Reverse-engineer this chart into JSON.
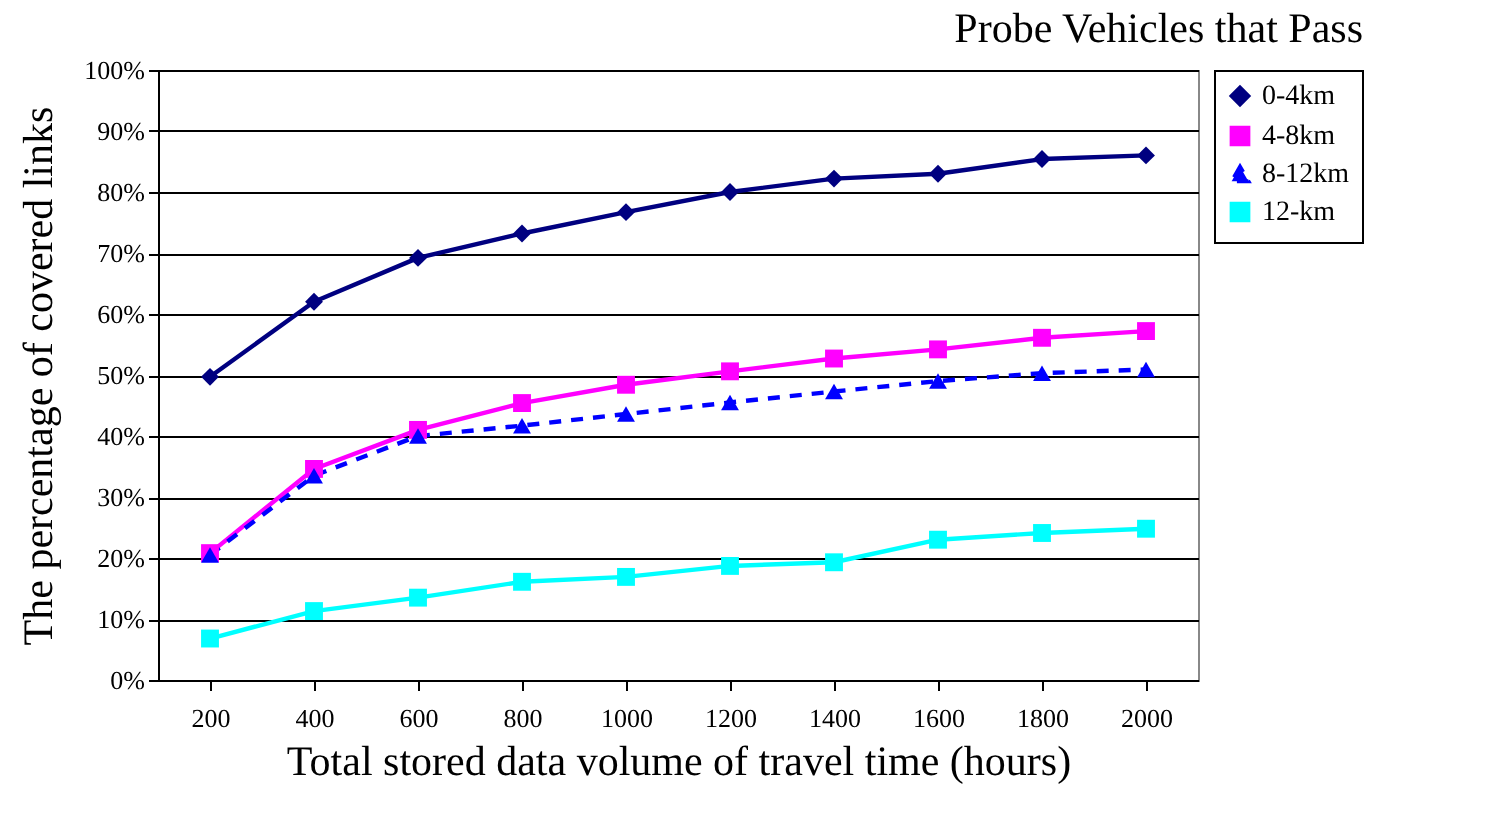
{
  "chart_data": {
    "type": "line",
    "title": "Probe Vehicles that Pass",
    "xlabel": "Total stored data volume of travel time (hours)",
    "ylabel": "The percentage of covered links",
    "categories": [
      "200",
      "400",
      "600",
      "800",
      "1000",
      "1200",
      "1400",
      "1600",
      "1800",
      "2000"
    ],
    "series": [
      {
        "name": "0-4km",
        "color": "#000080",
        "marker": "diamond",
        "line_style": "solid",
        "values": [
          49.7,
          62,
          69.2,
          73.2,
          76.7,
          80,
          82.2,
          83,
          85.4,
          86
        ]
      },
      {
        "name": "4-8km",
        "color": "#ff00ff",
        "marker": "square",
        "line_style": "solid",
        "values": [
          20.8,
          34.6,
          41,
          45.4,
          48.4,
          50.6,
          52.7,
          54.2,
          56.1,
          57.2
        ]
      },
      {
        "name": "8-12km",
        "color": "#0000ff",
        "marker": "triangle",
        "line_style": "dashed",
        "values": [
          20.5,
          33.5,
          40,
          41.7,
          43.6,
          45.5,
          47.3,
          49,
          50.3,
          50.9
        ]
      },
      {
        "name": "12-km",
        "color": "#00ffff",
        "marker": "square",
        "line_style": "solid",
        "values": [
          6.8,
          11.3,
          13.5,
          16.1,
          16.9,
          18.7,
          19.3,
          23,
          24.1,
          24.8
        ]
      }
    ],
    "ylim": [
      0,
      100
    ],
    "yticks": [
      {
        "value": 0,
        "label": "0%"
      },
      {
        "value": 10,
        "label": "10%"
      },
      {
        "value": 20,
        "label": "20%"
      },
      {
        "value": 30,
        "label": "30%"
      },
      {
        "value": 40,
        "label": "40%"
      },
      {
        "value": 50,
        "label": "50%"
      },
      {
        "value": 60,
        "label": "60%"
      },
      {
        "value": 70,
        "label": "70%"
      },
      {
        "value": 80,
        "label": "80%"
      },
      {
        "value": 90,
        "label": "90%"
      },
      {
        "value": 100,
        "label": "100%"
      }
    ],
    "grid": "y",
    "legend": "right"
  }
}
